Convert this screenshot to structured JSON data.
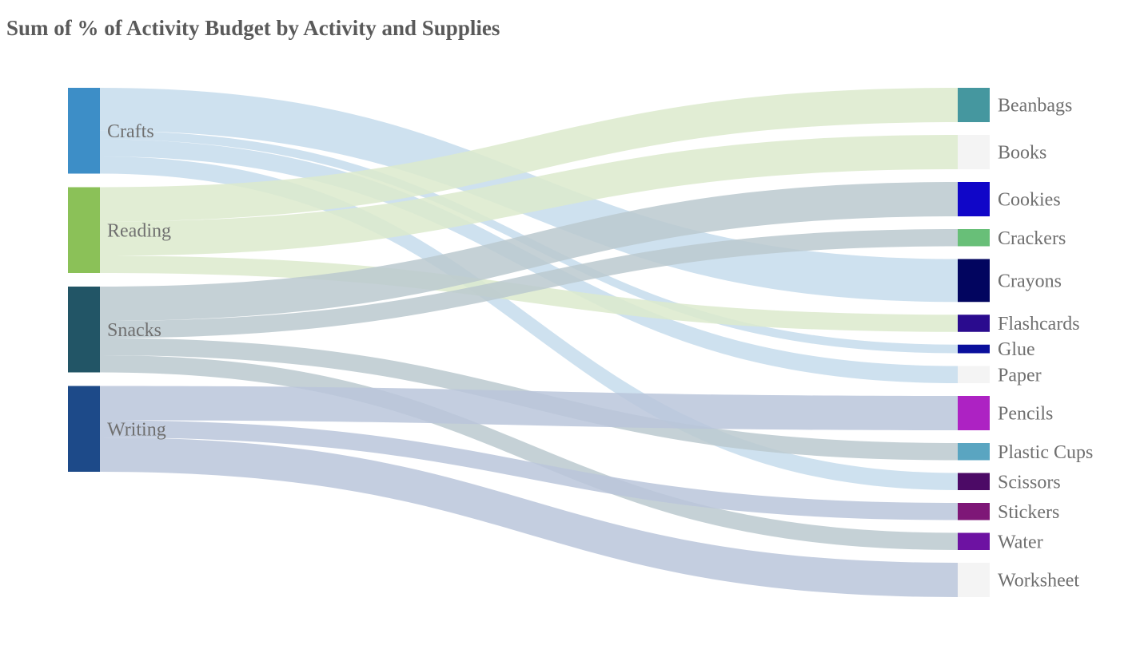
{
  "chart_data": {
    "type": "sankey",
    "title": "Sum of % of Activity Budget by Activity and Supplies",
    "sources": [
      {
        "name": "Crafts",
        "color": "#3d8ec7",
        "link_color": "#c6dcec"
      },
      {
        "name": "Reading",
        "color": "#8bc158",
        "link_color": "#dceacd"
      },
      {
        "name": "Snacks",
        "color": "#225566",
        "link_color": "#bbc9cf"
      },
      {
        "name": "Writing",
        "color": "#1d4a89",
        "link_color": "#bac6da"
      }
    ],
    "targets": [
      {
        "name": "Beanbags",
        "color": "#45979f"
      },
      {
        "name": "Books",
        "color": "#f4f4f4"
      },
      {
        "name": "Cookies",
        "color": "#1006c8"
      },
      {
        "name": "Crackers",
        "color": "#68bf78"
      },
      {
        "name": "Crayons",
        "color": "#02055f"
      },
      {
        "name": "Flashcards",
        "color": "#2a0b8e"
      },
      {
        "name": "Glue",
        "color": "#0a0f9c"
      },
      {
        "name": "Paper",
        "color": "#f4f4f4"
      },
      {
        "name": "Pencils",
        "color": "#ad22c3"
      },
      {
        "name": "Plastic Cups",
        "color": "#5aa5c1"
      },
      {
        "name": "Scissors",
        "color": "#4c0a66"
      },
      {
        "name": "Stickers",
        "color": "#7e1777"
      },
      {
        "name": "Water",
        "color": "#6d12a2"
      },
      {
        "name": "Worksheet",
        "color": "#f4f4f4"
      }
    ],
    "links": [
      {
        "source": "Crafts",
        "target": "Crayons",
        "value": 50
      },
      {
        "source": "Crafts",
        "target": "Glue",
        "value": 10
      },
      {
        "source": "Crafts",
        "target": "Paper",
        "value": 20
      },
      {
        "source": "Crafts",
        "target": "Scissors",
        "value": 20
      },
      {
        "source": "Reading",
        "target": "Beanbags",
        "value": 40
      },
      {
        "source": "Reading",
        "target": "Books",
        "value": 40
      },
      {
        "source": "Reading",
        "target": "Flashcards",
        "value": 20
      },
      {
        "source": "Snacks",
        "target": "Cookies",
        "value": 40
      },
      {
        "source": "Snacks",
        "target": "Crackers",
        "value": 20
      },
      {
        "source": "Snacks",
        "target": "Plastic Cups",
        "value": 20
      },
      {
        "source": "Snacks",
        "target": "Water",
        "value": 20
      },
      {
        "source": "Writing",
        "target": "Pencils",
        "value": 40
      },
      {
        "source": "Writing",
        "target": "Stickers",
        "value": 20
      },
      {
        "source": "Writing",
        "target": "Worksheet",
        "value": 40
      }
    ]
  }
}
